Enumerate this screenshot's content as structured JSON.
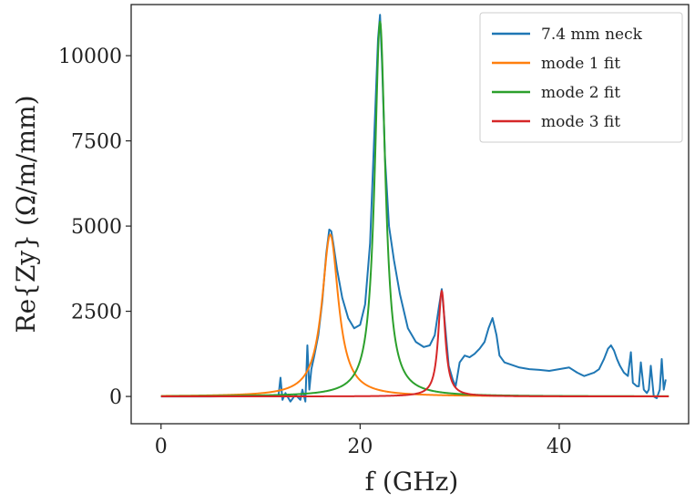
{
  "chart_data": {
    "type": "line",
    "xlabel": "f (GHz)",
    "ylabel": "Re{Zy} (Ω/m/mm)",
    "xlim": [
      -3,
      53
    ],
    "ylim": [
      -800,
      11500
    ],
    "xticks": [
      0,
      20,
      40
    ],
    "yticks": [
      0,
      2500,
      5000,
      7500,
      10000
    ],
    "grid": false,
    "legend_position": "top-right",
    "series": [
      {
        "name": "7.4 mm neck",
        "color": "#1f77b4",
        "x": [
          0,
          5,
          10,
          11.8,
          12.0,
          12.2,
          12.5,
          13.0,
          13.5,
          14.0,
          14.2,
          14.5,
          14.7,
          14.9,
          15.1,
          15.4,
          15.8,
          16.2,
          16.6,
          16.9,
          17.1,
          17.3,
          17.7,
          18.2,
          18.8,
          19.4,
          20.0,
          20.5,
          21.0,
          21.4,
          21.8,
          22.0,
          22.2,
          22.5,
          22.9,
          23.4,
          24.0,
          24.8,
          25.6,
          26.4,
          27.0,
          27.5,
          27.9,
          28.2,
          28.5,
          28.9,
          29.3,
          29.6,
          30.0,
          30.5,
          31.0,
          31.5,
          32.0,
          32.5,
          32.9,
          33.3,
          33.7,
          34.0,
          34.5,
          35.0,
          35.5,
          36.0,
          37.0,
          38.0,
          39.0,
          40.0,
          41.0,
          41.8,
          42.5,
          43.0,
          43.5,
          44.0,
          44.5,
          44.9,
          45.2,
          45.5,
          45.8,
          46.1,
          46.5,
          46.9,
          47.2,
          47.4,
          47.6,
          47.8,
          48.0,
          48.2,
          48.5,
          48.8,
          49.0,
          49.2,
          49.5,
          49.8,
          50.1,
          50.3,
          50.5,
          50.7
        ],
        "y": [
          0,
          0,
          10,
          20,
          550,
          -100,
          100,
          -150,
          50,
          -100,
          200,
          -150,
          1500,
          200,
          800,
          1200,
          1800,
          2800,
          4200,
          4900,
          4850,
          4500,
          3700,
          2900,
          2300,
          2000,
          2100,
          2700,
          4500,
          7500,
          10500,
          11200,
          9800,
          7000,
          5000,
          4000,
          3000,
          2000,
          1600,
          1450,
          1500,
          1800,
          2600,
          3150,
          2200,
          900,
          500,
          300,
          1000,
          1200,
          1150,
          1250,
          1400,
          1600,
          2000,
          2300,
          1800,
          1200,
          1000,
          950,
          900,
          850,
          800,
          780,
          750,
          800,
          850,
          700,
          600,
          650,
          700,
          800,
          1100,
          1400,
          1500,
          1350,
          1100,
          900,
          700,
          600,
          1300,
          400,
          350,
          300,
          300,
          1000,
          200,
          100,
          200,
          900,
          0,
          -50,
          200,
          1100,
          200,
          500
        ]
      },
      {
        "name": "mode 1 fit",
        "color": "#ff7f0e",
        "x0": 17.0,
        "peak": 4750,
        "halfwidth": 1.0
      },
      {
        "name": "mode 2 fit",
        "color": "#2ca02c",
        "x0": 22.0,
        "peak": 11000,
        "halfwidth": 0.65
      },
      {
        "name": "mode 3 fit",
        "color": "#d62728",
        "x0": 28.2,
        "peak": 3100,
        "halfwidth": 0.42
      }
    ],
    "fit_x_range": [
      0,
      51
    ]
  }
}
